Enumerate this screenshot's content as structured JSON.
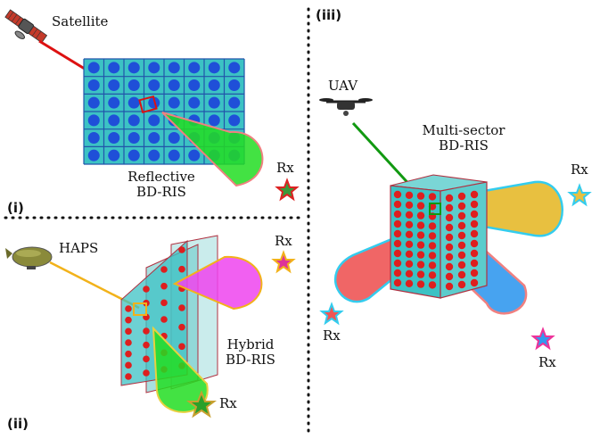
{
  "panels": {
    "i": {
      "tag": "(i)"
    },
    "ii": {
      "tag": "(ii)"
    },
    "iii": {
      "tag": "(iii)"
    }
  },
  "labels": {
    "satellite": "Satellite",
    "reflective_line1": "Reflective",
    "reflective_line2": "BD-RIS",
    "rx_i": "Rx",
    "haps": "HAPS",
    "hybrid_line1": "Hybrid",
    "hybrid_line2": "BD-RIS",
    "rx_ii_top": "Rx",
    "rx_ii_bottom": "Rx",
    "uav": "UAV",
    "multisector_line1": "Multi-sector",
    "multisector_line2": "BD-RIS",
    "rx_iii_right": "Rx",
    "rx_iii_left": "Rx",
    "rx_iii_bottom": "Rx"
  },
  "colors": {
    "panel_fill": "#3cc2c4",
    "grid_line": "#2255aa",
    "element_blue": "#1f4fd8",
    "element_red": "#dd1f1f",
    "beam_green": "#22dd22",
    "beam_magenta": "#ee44ee",
    "beam_yellow": "#e8c040",
    "beam_red": "#ee5555",
    "beam_blue": "#3399ee",
    "link_red": "#dd1111",
    "link_orange": "#f2b21a",
    "link_green": "#119911",
    "divider": "#111111"
  }
}
